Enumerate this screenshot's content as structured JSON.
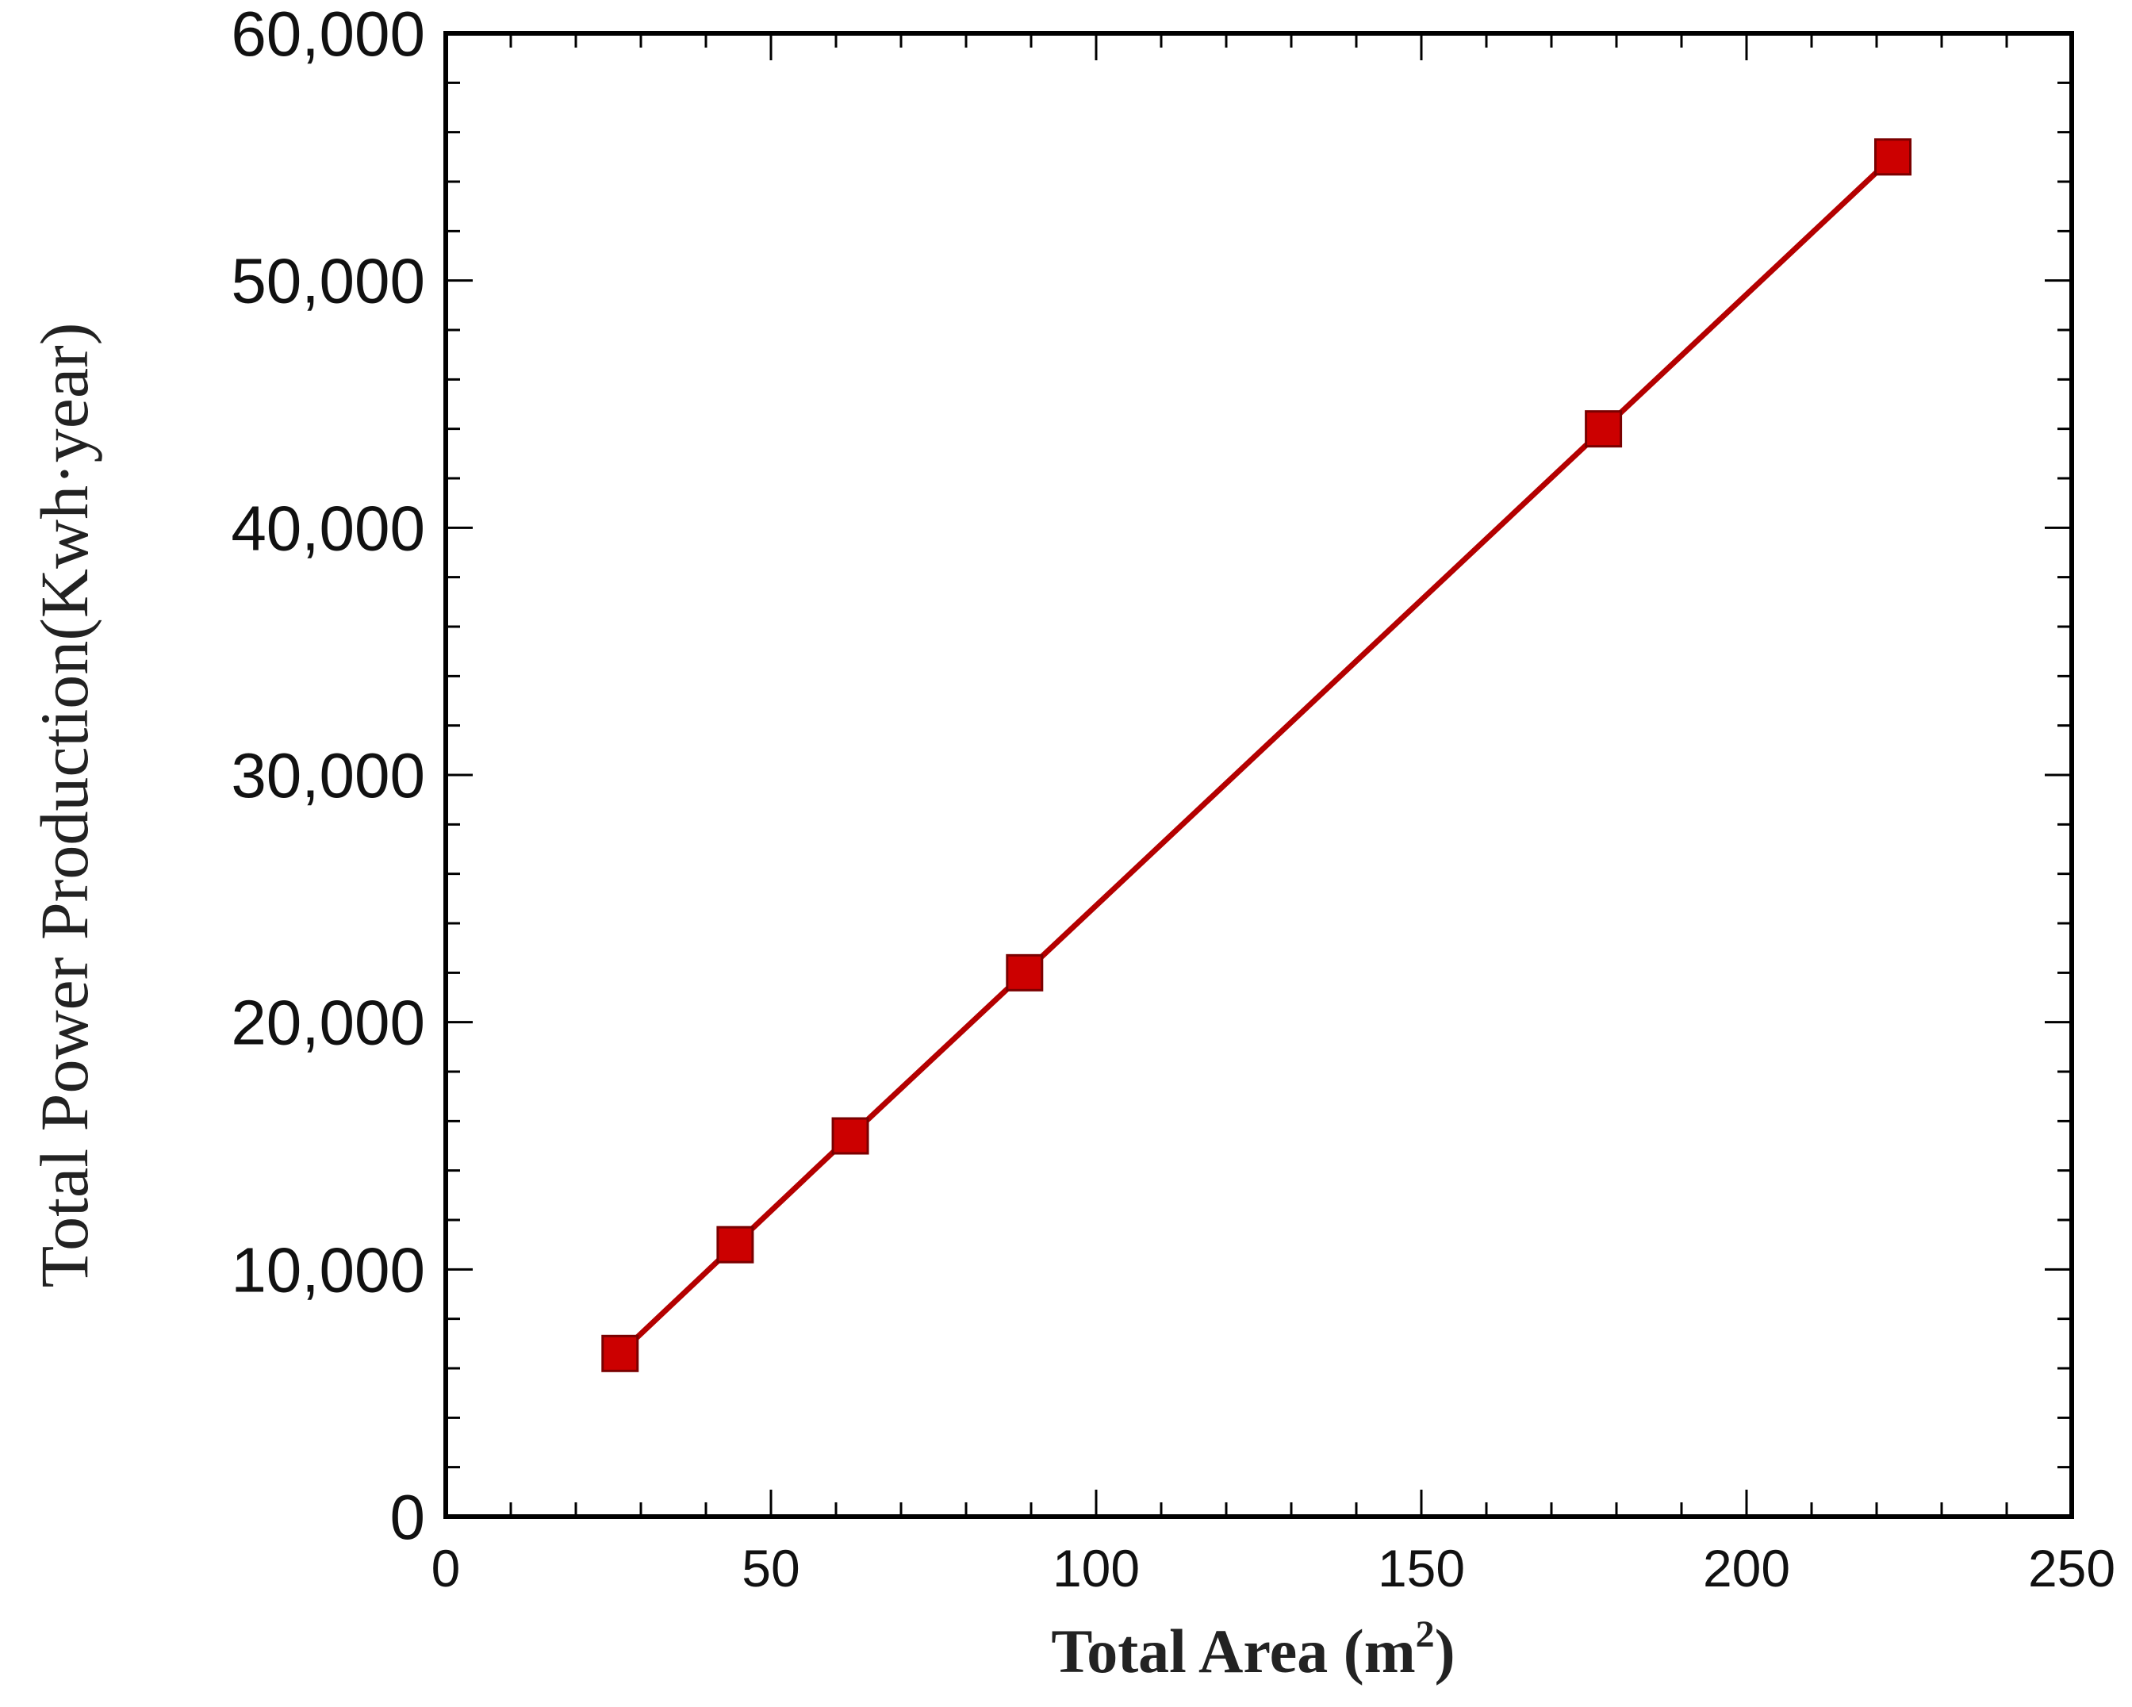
{
  "chart_data": {
    "type": "line",
    "title": "",
    "xlabel": "Total Area",
    "xlabel_unit_open": " (m",
    "xlabel_unit_sup": "2",
    "xlabel_unit_close": ")",
    "ylabel": "Total Power Production(Kwh·year)",
    "xlim": [
      0,
      250
    ],
    "ylim": [
      0,
      60000
    ],
    "x_ticks": [
      0,
      50,
      100,
      150,
      200,
      250
    ],
    "x_tick_labels": [
      "0",
      "50",
      "100",
      "150",
      "200",
      "250"
    ],
    "y_ticks": [
      0,
      10000,
      20000,
      30000,
      40000,
      50000,
      60000
    ],
    "y_tick_labels": [
      "0",
      "10,000",
      "20,000",
      "30,000",
      "40,000",
      "50,000",
      "60,000"
    ],
    "grid": false,
    "legend": "none",
    "series": [
      {
        "x": [
          26.8,
          44.5,
          62.2,
          89.0,
          178.0,
          222.5
        ],
        "y": [
          6600,
          11000,
          15400,
          22000,
          44000,
          55000
        ],
        "color": "#b40000",
        "marker": "square",
        "marker_color": "#cc0000"
      }
    ]
  }
}
